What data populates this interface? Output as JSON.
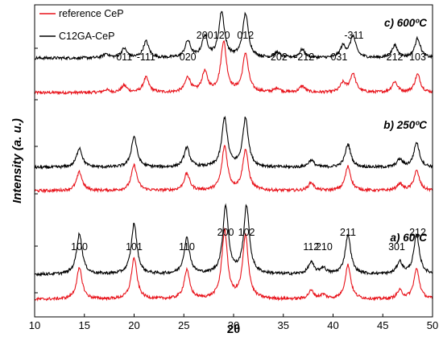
{
  "chart_data": {
    "type": "line",
    "xlabel": "2θ",
    "ylabel": "Intensity (a. u.)",
    "xlim": [
      10,
      50
    ],
    "x_ticks": [
      10,
      15,
      20,
      25,
      30,
      35,
      40,
      45,
      50
    ],
    "grid": false,
    "legend_position": "top-left",
    "series_styles": [
      {
        "name": "reference CeP",
        "color": "#e8121a"
      },
      {
        "name": "C12GA-CeP",
        "color": "#000000"
      }
    ],
    "panels": [
      {
        "label": "c) 600ºC",
        "reference_peaks": [
          [
            17.2,
            0.05
          ],
          [
            19.0,
            0.13
          ],
          [
            21.2,
            0.28
          ],
          [
            25.4,
            0.28
          ],
          [
            27.1,
            0.38
          ],
          [
            29.0,
            0.95
          ],
          [
            31.2,
            0.73
          ],
          [
            34.4,
            0.08
          ],
          [
            36.9,
            0.12
          ],
          [
            41.0,
            0.17
          ],
          [
            42.0,
            0.35
          ],
          [
            46.2,
            0.2
          ],
          [
            48.5,
            0.34
          ]
        ],
        "composite_peaks": [
          [
            17.2,
            0.08
          ],
          [
            19.0,
            0.18
          ],
          [
            21.2,
            0.32
          ],
          [
            25.4,
            0.32
          ],
          [
            27.1,
            0.4
          ],
          [
            28.8,
            0.88
          ],
          [
            31.2,
            0.85
          ],
          [
            34.4,
            0.1
          ],
          [
            36.9,
            0.16
          ],
          [
            41.0,
            0.22
          ],
          [
            42.0,
            0.42
          ],
          [
            46.2,
            0.24
          ],
          [
            48.5,
            0.38
          ]
        ],
        "peak_labels": [
          {
            "text": "011",
            "x": 19.0
          },
          {
            "text": "-111",
            "x": 21.2
          },
          {
            "text": "020",
            "x": 25.4
          },
          {
            "text": "200",
            "x": 27.1
          },
          {
            "text": "120",
            "x": 28.8
          },
          {
            "text": "012",
            "x": 31.2
          },
          {
            "text": "-202",
            "x": 34.4
          },
          {
            "text": "-212",
            "x": 37.1
          },
          {
            "text": "031",
            "x": 40.6
          },
          {
            "text": "-311",
            "x": 42.1
          },
          {
            "text": "212",
            "x": 46.2
          },
          {
            "text": "103",
            "x": 48.5
          }
        ]
      },
      {
        "label": "b) 250ºC",
        "reference_peaks": [
          [
            14.5,
            0.33
          ],
          [
            20.0,
            0.45
          ],
          [
            25.3,
            0.3
          ],
          [
            29.1,
            0.78
          ],
          [
            31.2,
            0.72
          ],
          [
            37.8,
            0.14
          ],
          [
            41.5,
            0.43
          ],
          [
            46.7,
            0.12
          ],
          [
            48.4,
            0.35
          ]
        ],
        "composite_peaks": [
          [
            14.5,
            0.38
          ],
          [
            20.0,
            0.6
          ],
          [
            25.3,
            0.38
          ],
          [
            29.1,
            0.95
          ],
          [
            31.2,
            0.95
          ],
          [
            37.8,
            0.14
          ],
          [
            41.5,
            0.45
          ],
          [
            46.7,
            0.15
          ],
          [
            48.4,
            0.48
          ]
        ]
      },
      {
        "label": "a) 60ºC",
        "reference_peaks": [
          [
            14.5,
            0.45
          ],
          [
            20.0,
            0.6
          ],
          [
            25.3,
            0.42
          ],
          [
            29.1,
            1.0
          ],
          [
            31.2,
            0.92
          ],
          [
            37.8,
            0.12
          ],
          [
            39.0,
            0.06
          ],
          [
            41.5,
            0.5
          ],
          [
            46.7,
            0.12
          ],
          [
            48.4,
            0.44
          ]
        ],
        "composite_peaks": [
          [
            14.5,
            0.6
          ],
          [
            20.0,
            0.75
          ],
          [
            25.3,
            0.53
          ],
          [
            29.2,
            1.0
          ],
          [
            31.3,
            1.0
          ],
          [
            37.8,
            0.17
          ],
          [
            39.0,
            0.09
          ],
          [
            41.5,
            0.58
          ],
          [
            46.7,
            0.18
          ],
          [
            48.4,
            0.58
          ]
        ],
        "peak_labels": [
          {
            "text": "100",
            "x": 14.5
          },
          {
            "text": "101",
            "x": 20.0
          },
          {
            "text": "110",
            "x": 25.3
          },
          {
            "text": "200",
            "x": 29.2
          },
          {
            "text": "102",
            "x": 31.3
          },
          {
            "text": "112",
            "x": 37.8
          },
          {
            "text": "210",
            "x": 39.1
          },
          {
            "text": "211",
            "x": 41.5
          },
          {
            "text": "301",
            "x": 46.4
          },
          {
            "text": "212",
            "x": 48.5
          }
        ]
      }
    ]
  }
}
